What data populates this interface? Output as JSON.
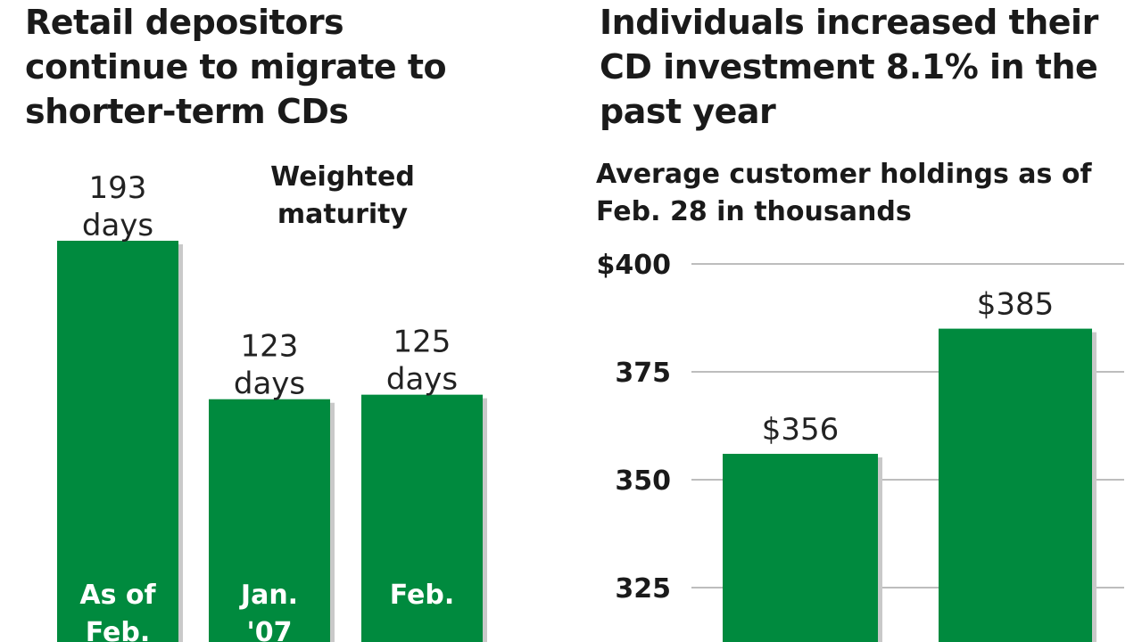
{
  "chart_data": [
    {
      "type": "bar",
      "title": "Retail depositors continue to migrate to shorter-term CDs",
      "title_lines": [
        "Retail depositors",
        "continue to migrate to",
        "shorter-term CDs"
      ],
      "series_label": "Weighted maturity",
      "series_label_lines": [
        "Weighted",
        "maturity"
      ],
      "categories": [
        "As of Feb.",
        "Jan. '07",
        "Feb."
      ],
      "category_lines": [
        [
          "As of",
          "Feb."
        ],
        [
          "Jan.",
          "'07"
        ],
        [
          "Feb."
        ]
      ],
      "values": [
        193,
        123,
        125
      ],
      "value_lines": [
        [
          "193",
          "days"
        ],
        [
          "123",
          "days"
        ],
        [
          "125",
          "days"
        ]
      ],
      "unit": "days",
      "ylim": [
        0,
        193
      ],
      "bar_color": "#008a3e",
      "shadow_color": "#c9c9c9"
    },
    {
      "type": "bar",
      "title": "Individuals increased their CD investment 8.1% in the past year",
      "title_lines": [
        "Individuals increased their",
        "CD investment 8.1% in the",
        "past year"
      ],
      "subtitle": "Average customer holdings as of Feb. 28 in thousands",
      "subtitle_lines": [
        "Average customer holdings as of",
        "Feb. 28 in thousands"
      ],
      "categories": [
        "",
        ""
      ],
      "values": [
        356,
        385
      ],
      "value_labels": [
        "$356",
        "$385"
      ],
      "ylim": [
        300,
        400
      ],
      "yticks": [
        325,
        350,
        375,
        400
      ],
      "ytick_labels": [
        "325",
        "350",
        "375",
        "$400"
      ],
      "grid": true,
      "bar_color": "#008a3e",
      "grid_color": "#bdbdbd"
    }
  ]
}
